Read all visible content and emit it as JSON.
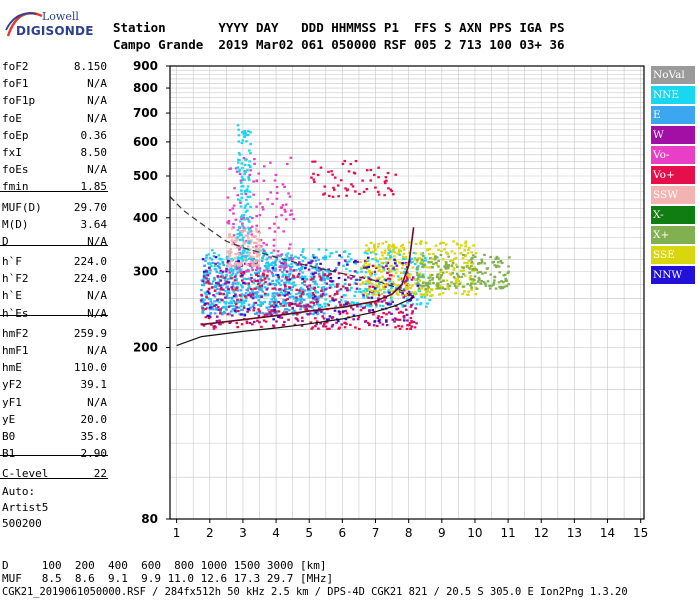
{
  "logo": {
    "line1": "Lowell",
    "line2": "DIGISONDE"
  },
  "header": {
    "line1": "Station       YYYY DAY   DDD HHMMSS P1  FFS S AXN PPS IGA PS",
    "line2": "Campo Grande  2019 Mar02 061 050000 RSF 005 2 713 100 03+ 36"
  },
  "params": [
    {
      "k": "foF2",
      "v": "8.150"
    },
    {
      "k": "foF1",
      "v": "N/A"
    },
    {
      "k": "foF1p",
      "v": "N/A"
    },
    {
      "k": "foE",
      "v": "N/A"
    },
    {
      "k": "foEp",
      "v": "0.36"
    },
    {
      "k": "fxI",
      "v": "8.50"
    },
    {
      "k": "foEs",
      "v": "N/A"
    },
    {
      "k": "fmin",
      "v": "1.85"
    },
    {
      "k": "MUF(D)",
      "v": "29.70"
    },
    {
      "k": "M(D)",
      "v": "3.64"
    },
    {
      "k": "D",
      "v": "N/A"
    },
    {
      "k": "h`F",
      "v": "224.0"
    },
    {
      "k": "h`F2",
      "v": "224.0"
    },
    {
      "k": "h`E",
      "v": "N/A"
    },
    {
      "k": "h`Es",
      "v": "N/A"
    },
    {
      "k": "hmF2",
      "v": "259.9"
    },
    {
      "k": "hmF1",
      "v": "N/A"
    },
    {
      "k": "hmE",
      "v": "110.0"
    },
    {
      "k": "yF2",
      "v": "39.1"
    },
    {
      "k": "yF1",
      "v": "N/A"
    },
    {
      "k": "yE",
      "v": "20.0"
    },
    {
      "k": "B0",
      "v": "35.8"
    },
    {
      "k": "B1",
      "v": "2.90"
    },
    {
      "k": "C-level",
      "v": "22"
    }
  ],
  "auto": {
    "line1": "Auto:",
    "line2": "Artist5",
    "line3": "500200"
  },
  "legend": [
    {
      "label": "NoVal",
      "color": "#9a9a9a"
    },
    {
      "label": "NNE",
      "color": "#19d7f0"
    },
    {
      "label": "E",
      "color": "#3ca7f0"
    },
    {
      "label": "W",
      "color": "#a10fa5"
    },
    {
      "label": "Vo-",
      "color": "#e83fc6"
    },
    {
      "label": "Vo+",
      "color": "#e60f4b"
    },
    {
      "label": "SSW",
      "color": "#f4b3b3"
    },
    {
      "label": "X-",
      "color": "#0f7d12"
    },
    {
      "label": "X+",
      "color": "#80b050"
    },
    {
      "label": "SSE",
      "color": "#d8d60c"
    },
    {
      "label": "NNW",
      "color": "#2010d8"
    }
  ],
  "bottom": {
    "row_d": "D     100  200  400  600  800 1000 1500 3000 [km]",
    "row_muf": "MUF   8.5  8.6  9.1  9.9 11.0 12.6 17.3 29.7 [MHz]",
    "footer": "CGK21_2019061050000.RSF / 284fx512h 50 kHz 2.5 km / DPS-4D CGK21 821 / 20.5 S 305.0 E Ion2Png 1.3.20"
  },
  "chart_data": {
    "type": "scatter",
    "xlim": [
      0.8,
      15.1
    ],
    "ylim": [
      80,
      900
    ],
    "y_scale": "log",
    "x_ticks": [
      1,
      2,
      3,
      4,
      5,
      6,
      7,
      8,
      9,
      10,
      11,
      12,
      13,
      14,
      15
    ],
    "y_ticks": [
      80,
      200,
      300,
      400,
      500,
      600,
      700,
      800,
      900
    ],
    "grid": true,
    "ordinary_trace": {
      "x": [
        1.75,
        3.0,
        4.0,
        5.0,
        6.0,
        7.0,
        7.5,
        7.8,
        8.0,
        8.15
      ],
      "y": [
        226,
        232,
        237,
        243,
        248,
        256,
        266,
        280,
        310,
        380
      ]
    },
    "profile_curve": {
      "x": [
        1.0,
        1.75,
        3.0,
        4.0,
        5.0,
        6.0,
        7.0,
        7.6,
        8.0,
        8.15
      ],
      "y": [
        202,
        212,
        218,
        222,
        227,
        233,
        242,
        250,
        258,
        262
      ]
    },
    "dashed_curve": {
      "x": [
        0.8,
        1.2,
        1.8,
        2.5,
        3.0,
        4.0,
        5.0,
        6.0,
        7.0,
        7.6,
        8.0,
        8.15
      ],
      "y": [
        448,
        416,
        385,
        353,
        341,
        324,
        309,
        297,
        286,
        276,
        266,
        262
      ]
    },
    "echo_clusters": [
      {
        "name": "E",
        "color": "#3ca7f0",
        "x": [
          1.7,
          5.5
        ],
        "y": [
          240,
          330
        ],
        "n": 520
      },
      {
        "name": "NNE",
        "color": "#19d7f0",
        "x": [
          1.7,
          8.6
        ],
        "y": [
          250,
          340
        ],
        "n": 520
      },
      {
        "name": "W",
        "color": "#a10fa5",
        "x": [
          1.7,
          8.2
        ],
        "y": [
          225,
          320
        ],
        "n": 260
      },
      {
        "name": "Vo+",
        "color": "#e60f4b",
        "x": [
          1.7,
          8.2
        ],
        "y": [
          222,
          300
        ],
        "n": 260
      },
      {
        "name": "SSE",
        "color": "#d8d60c",
        "x": [
          6.5,
          10.0
        ],
        "y": [
          265,
          355
        ],
        "n": 340
      },
      {
        "name": "X+",
        "color": "#80b050",
        "x": [
          8.2,
          11.0
        ],
        "y": [
          275,
          330
        ],
        "n": 200
      },
      {
        "name": "Vo-",
        "color": "#e83fc6",
        "x": [
          2.5,
          4.5
        ],
        "y": [
          300,
          560
        ],
        "n": 150
      },
      {
        "name": "SSW",
        "color": "#f4b3b3",
        "x": [
          2.5,
          3.5
        ],
        "y": [
          310,
          380
        ],
        "n": 120
      },
      {
        "name": "NNE",
        "color": "#19d7f0",
        "x": [
          2.8,
          3.2
        ],
        "y": [
          320,
          660
        ],
        "n": 120
      },
      {
        "name": "Vo+",
        "color": "#e60f4b",
        "x": [
          5.0,
          7.6
        ],
        "y": [
          450,
          545
        ],
        "n": 60
      },
      {
        "name": "NNW",
        "color": "#2010d8",
        "x": [
          1.7,
          8.5
        ],
        "y": [
          230,
          330
        ],
        "n": 80
      }
    ]
  }
}
